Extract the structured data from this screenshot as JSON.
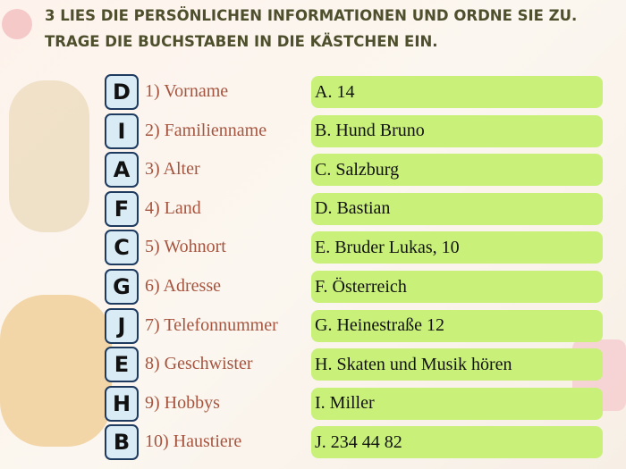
{
  "instruction": {
    "lines": [
      "3 LIES DIE PERSÖNLICHEN INFORMATIONEN UND ORDNE SIE ZU.",
      "TRAGE DIE BUCHSTABEN IN DIE KÄSTCHEN EIN."
    ]
  },
  "rows": [
    {
      "letter": "D",
      "item": "1) Vorname",
      "option": "A. 14"
    },
    {
      "letter": "I",
      "item": "2) Familienname",
      "option": "B. Hund Bruno"
    },
    {
      "letter": "A",
      "item": "3) Alter",
      "option": "C. Salzburg"
    },
    {
      "letter": "F",
      "item": "4) Land",
      "option": "D. Bastian"
    },
    {
      "letter": "C",
      "item": "5) Wohnort",
      "option": "E. Bruder Lukas, 10"
    },
    {
      "letter": "G",
      "item": "6) Adresse",
      "option": "F. Österreich"
    },
    {
      "letter": "J",
      "item": "7) Telefonnummer",
      "option": "G. Heinestraße 12"
    },
    {
      "letter": "E",
      "item": "8) Geschwister",
      "option": "H. Skaten und Musik hören"
    },
    {
      "letter": "H",
      "item": "9) Hobbys",
      "option": "I. Miller"
    },
    {
      "letter": "B",
      "item": "10) Haustiere",
      "option": "J. 234 44 82"
    }
  ]
}
